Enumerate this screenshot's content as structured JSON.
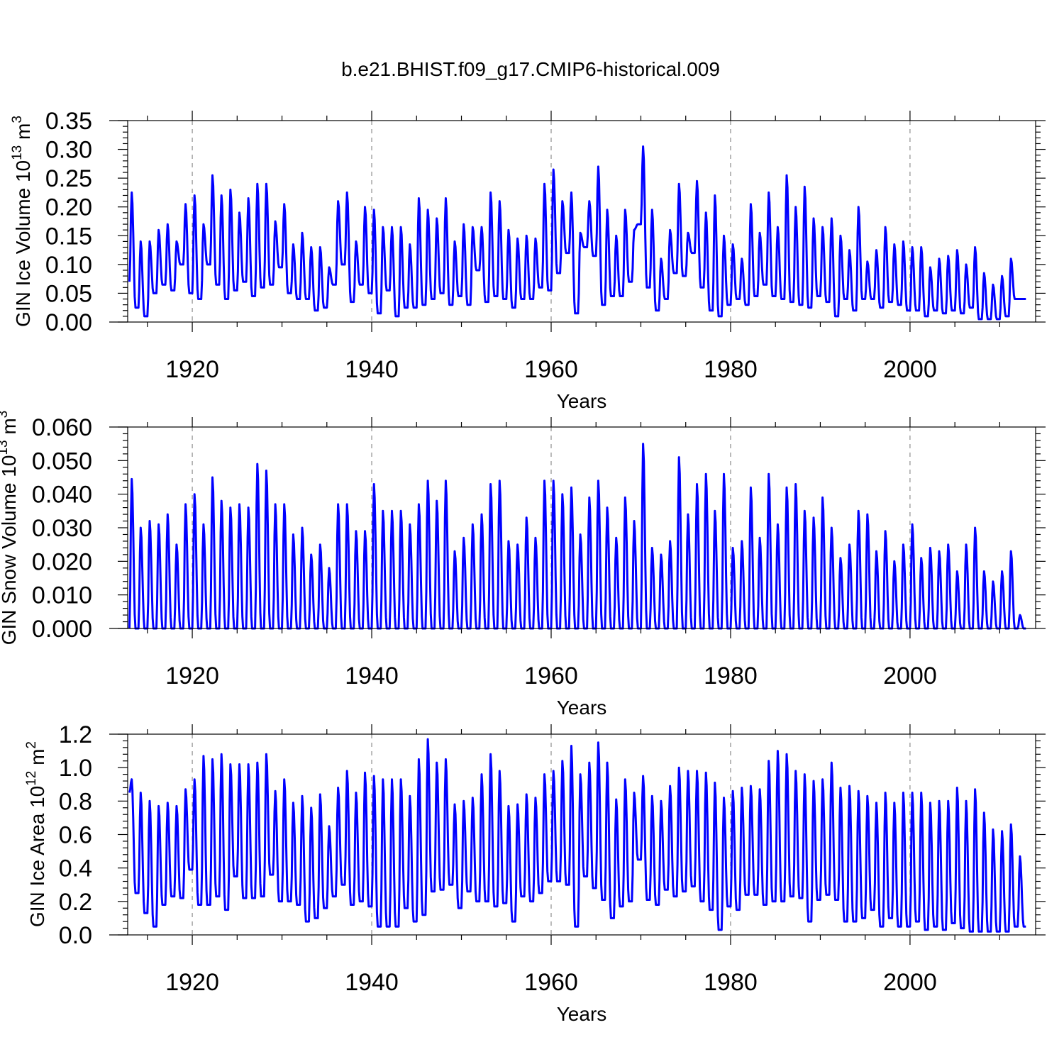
{
  "figure_title": "b.e21.BHIST.f09_g17.CMIP6-historical.009",
  "chart_data": [
    {
      "type": "line",
      "title": "b.e21.BHIST.f09_g17.CMIP6-historical.009",
      "xlabel": "Years",
      "ylabel": {
        "base": "GIN Ice Volume 10",
        "exp1": "13",
        "mid": " m",
        "exp2": "3"
      },
      "xlim": [
        1912.8,
        2014.0
      ],
      "ylim": [
        0.0,
        0.35
      ],
      "xticks": [
        1920,
        1940,
        1960,
        1980,
        2000
      ],
      "xtick_labels": [
        "1920",
        "1940",
        "1960",
        "1980",
        "2000"
      ],
      "yticks": [
        0.0,
        0.05,
        0.1,
        0.15,
        0.2,
        0.25,
        0.3,
        0.35
      ],
      "ytick_labels": [
        "0.00",
        "0.05",
        "0.10",
        "0.15",
        "0.20",
        "0.25",
        "0.30",
        "0.35"
      ],
      "grid_x": true,
      "series": [
        {
          "name": "GIN Ice Volume",
          "color": "#0000ff",
          "start_year": 1913,
          "annual_max": [
            0.225,
            0.14,
            0.14,
            0.16,
            0.17,
            0.14,
            0.205,
            0.22,
            0.17,
            0.255,
            0.22,
            0.23,
            0.19,
            0.215,
            0.24,
            0.24,
            0.175,
            0.205,
            0.135,
            0.155,
            0.13,
            0.13,
            0.095,
            0.21,
            0.225,
            0.14,
            0.2,
            0.195,
            0.165,
            0.165,
            0.165,
            0.135,
            0.215,
            0.195,
            0.18,
            0.215,
            0.14,
            0.17,
            0.165,
            0.165,
            0.225,
            0.21,
            0.16,
            0.145,
            0.15,
            0.145,
            0.24,
            0.265,
            0.21,
            0.225,
            0.155,
            0.21,
            0.27,
            0.195,
            0.15,
            0.195,
            0.16,
            0.305,
            0.195,
            0.11,
            0.16,
            0.24,
            0.155,
            0.245,
            0.19,
            0.22,
            0.15,
            0.135,
            0.11,
            0.205,
            0.155,
            0.225,
            0.165,
            0.255,
            0.2,
            0.235,
            0.18,
            0.165,
            0.18,
            0.15,
            0.125,
            0.2,
            0.105,
            0.125,
            0.165,
            0.135,
            0.14,
            0.13,
            0.13,
            0.095,
            0.11,
            0.115,
            0.125,
            0.1,
            0.13,
            0.085,
            0.065,
            0.08,
            0.11,
            0.04
          ],
          "annual_min": [
            0.07,
            0.025,
            0.01,
            0.05,
            0.065,
            0.055,
            0.1,
            0.05,
            0.04,
            0.1,
            0.065,
            0.04,
            0.055,
            0.07,
            0.045,
            0.06,
            0.065,
            0.095,
            0.05,
            0.04,
            0.04,
            0.02,
            0.025,
            0.065,
            0.1,
            0.035,
            0.065,
            0.05,
            0.015,
            0.055,
            0.01,
            0.025,
            0.025,
            0.03,
            0.04,
            0.05,
            0.03,
            0.045,
            0.03,
            0.09,
            0.035,
            0.045,
            0.04,
            0.025,
            0.04,
            0.04,
            0.06,
            0.055,
            0.085,
            0.12,
            0.015,
            0.13,
            0.115,
            0.03,
            0.045,
            0.045,
            0.07,
            0.17,
            0.06,
            0.02,
            0.04,
            0.085,
            0.08,
            0.12,
            0.06,
            0.02,
            0.01,
            0.03,
            0.04,
            0.03,
            0.045,
            0.065,
            0.045,
            0.04,
            0.035,
            0.03,
            0.025,
            0.045,
            0.035,
            0.01,
            0.04,
            0.02,
            0.04,
            0.04,
            0.025,
            0.035,
            0.03,
            0.02,
            0.02,
            0.01,
            0.02,
            0.015,
            0.02,
            0.015,
            0.025,
            0.005,
            0.005,
            0.005,
            0.01,
            0.04
          ]
        }
      ]
    },
    {
      "type": "line",
      "xlabel": "Years",
      "ylabel": {
        "base": "GIN Snow Volume 10",
        "exp1": "13",
        "mid": " m",
        "exp2": "3"
      },
      "xlim": [
        1912.8,
        2014.0
      ],
      "ylim": [
        0.0,
        0.06
      ],
      "xticks": [
        1920,
        1940,
        1960,
        1980,
        2000
      ],
      "xtick_labels": [
        "1920",
        "1940",
        "1960",
        "1980",
        "2000"
      ],
      "yticks": [
        0.0,
        0.01,
        0.02,
        0.03,
        0.04,
        0.05,
        0.06
      ],
      "ytick_labels": [
        "0.000",
        "0.010",
        "0.020",
        "0.030",
        "0.040",
        "0.050",
        "0.060"
      ],
      "grid_x": true,
      "series": [
        {
          "name": "GIN Snow Volume",
          "color": "#0000ff",
          "start_year": 1913,
          "annual_max": [
            0.0445,
            0.03,
            0.032,
            0.031,
            0.034,
            0.025,
            0.037,
            0.04,
            0.031,
            0.045,
            0.038,
            0.036,
            0.037,
            0.036,
            0.049,
            0.047,
            0.037,
            0.037,
            0.028,
            0.03,
            0.022,
            0.025,
            0.018,
            0.037,
            0.037,
            0.029,
            0.029,
            0.043,
            0.035,
            0.035,
            0.035,
            0.031,
            0.037,
            0.044,
            0.038,
            0.044,
            0.023,
            0.027,
            0.031,
            0.034,
            0.043,
            0.044,
            0.026,
            0.025,
            0.033,
            0.027,
            0.044,
            0.044,
            0.04,
            0.042,
            0.028,
            0.039,
            0.044,
            0.036,
            0.027,
            0.039,
            0.032,
            0.055,
            0.024,
            0.022,
            0.026,
            0.051,
            0.034,
            0.043,
            0.046,
            0.035,
            0.046,
            0.024,
            0.026,
            0.042,
            0.027,
            0.046,
            0.031,
            0.042,
            0.043,
            0.035,
            0.033,
            0.039,
            0.03,
            0.021,
            0.025,
            0.035,
            0.034,
            0.023,
            0.029,
            0.02,
            0.025,
            0.031,
            0.021,
            0.024,
            0.023,
            0.025,
            0.017,
            0.025,
            0.03,
            0.017,
            0.014,
            0.017,
            0.023,
            0.004
          ],
          "annual_min": [
            0.0,
            0.0,
            0.0,
            0.0,
            0.0,
            0.0,
            0.0,
            0.0,
            0.0,
            0.0,
            0.0,
            0.0,
            0.0,
            0.0,
            0.0,
            0.0,
            0.0,
            0.0,
            0.0,
            0.0,
            0.0,
            0.0,
            0.0,
            0.0,
            0.0,
            0.0,
            0.0,
            0.0,
            0.0,
            0.0,
            0.0,
            0.0,
            0.0,
            0.0,
            0.0,
            0.0,
            0.0,
            0.0,
            0.0,
            0.0,
            0.0,
            0.0,
            0.0,
            0.0,
            0.0,
            0.0,
            0.0,
            0.0,
            0.0,
            0.0,
            0.0,
            0.0,
            0.0,
            0.0,
            0.0,
            0.0,
            0.0,
            0.0,
            0.0,
            0.0,
            0.0,
            0.0,
            0.0,
            0.0,
            0.0,
            0.0,
            0.0,
            0.0,
            0.0,
            0.0,
            0.0,
            0.0,
            0.0,
            0.0,
            0.0,
            0.0,
            0.0,
            0.0,
            0.0,
            0.0,
            0.0,
            0.0,
            0.0,
            0.0,
            0.0,
            0.0,
            0.0,
            0.0,
            0.0,
            0.0,
            0.0,
            0.0,
            0.0,
            0.0,
            0.0,
            0.0,
            0.0,
            0.0,
            0.0,
            0.0
          ]
        }
      ]
    },
    {
      "type": "line",
      "xlabel": "Years",
      "ylabel": {
        "base": "GIN Ice Area 10",
        "exp1": "12",
        "mid": " m",
        "exp2": "2"
      },
      "xlim": [
        1912.8,
        2014.0
      ],
      "ylim": [
        0.0,
        1.2
      ],
      "xticks": [
        1920,
        1940,
        1960,
        1980,
        2000
      ],
      "xtick_labels": [
        "1920",
        "1940",
        "1960",
        "1980",
        "2000"
      ],
      "yticks": [
        0.0,
        0.2,
        0.4,
        0.6,
        0.8,
        1.0,
        1.2
      ],
      "ytick_labels": [
        "0.0",
        "0.2",
        "0.4",
        "0.6",
        "0.8",
        "1.0",
        "1.2"
      ],
      "grid_x": true,
      "series": [
        {
          "name": "GIN Ice Area",
          "color": "#0000ff",
          "start_year": 1913,
          "annual_max": [
            0.93,
            0.85,
            0.8,
            0.77,
            0.79,
            0.77,
            0.87,
            0.93,
            1.07,
            1.05,
            1.08,
            1.02,
            1.02,
            1.02,
            1.03,
            1.08,
            0.86,
            0.93,
            0.79,
            0.83,
            0.76,
            0.84,
            0.65,
            0.88,
            0.98,
            0.85,
            0.97,
            0.95,
            0.93,
            0.93,
            0.93,
            0.83,
            1.05,
            1.17,
            1.03,
            1.05,
            0.78,
            0.8,
            0.82,
            0.96,
            1.08,
            0.98,
            0.77,
            0.78,
            0.84,
            0.82,
            0.96,
            0.98,
            1.04,
            1.13,
            0.96,
            1.03,
            1.15,
            1.03,
            0.81,
            0.93,
            0.85,
            0.95,
            0.83,
            0.8,
            0.89,
            1.0,
            0.98,
            0.98,
            0.97,
            0.91,
            0.82,
            0.86,
            0.88,
            0.89,
            0.87,
            1.04,
            1.1,
            1.08,
            0.98,
            0.96,
            0.92,
            0.93,
            1.03,
            0.88,
            0.89,
            0.86,
            0.83,
            0.79,
            0.85,
            0.79,
            0.85,
            0.85,
            0.85,
            0.79,
            0.8,
            0.8,
            0.88,
            0.8,
            0.87,
            0.73,
            0.63,
            0.62,
            0.66,
            0.47
          ],
          "annual_min": [
            0.85,
            0.25,
            0.13,
            0.05,
            0.18,
            0.23,
            0.22,
            0.39,
            0.18,
            0.18,
            0.23,
            0.15,
            0.35,
            0.22,
            0.22,
            0.23,
            0.36,
            0.2,
            0.2,
            0.18,
            0.08,
            0.1,
            0.16,
            0.23,
            0.3,
            0.18,
            0.2,
            0.17,
            0.05,
            0.05,
            0.05,
            0.16,
            0.08,
            0.12,
            0.26,
            0.27,
            0.3,
            0.16,
            0.26,
            0.2,
            0.2,
            0.17,
            0.19,
            0.08,
            0.23,
            0.2,
            0.25,
            0.32,
            0.32,
            0.3,
            0.05,
            0.35,
            0.28,
            0.21,
            0.1,
            0.17,
            0.2,
            0.45,
            0.21,
            0.18,
            0.27,
            0.23,
            0.26,
            0.29,
            0.2,
            0.15,
            0.03,
            0.17,
            0.15,
            0.24,
            0.24,
            0.18,
            0.2,
            0.2,
            0.23,
            0.22,
            0.08,
            0.21,
            0.24,
            0.21,
            0.08,
            0.08,
            0.1,
            0.15,
            0.05,
            0.1,
            0.05,
            0.05,
            0.08,
            0.03,
            0.05,
            0.03,
            0.07,
            0.04,
            0.02,
            0.02,
            0.02,
            0.02,
            0.02,
            0.05
          ]
        }
      ]
    }
  ]
}
